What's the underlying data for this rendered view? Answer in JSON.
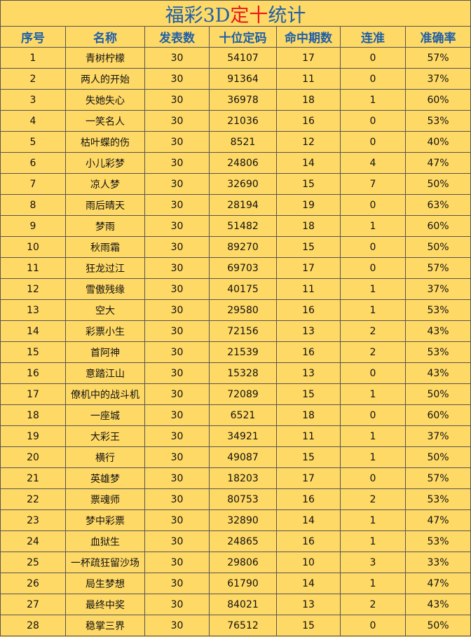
{
  "title": {
    "prefix": "福彩3D",
    "highlight": "定十",
    "suffix": "统计"
  },
  "table": {
    "headers": [
      "序号",
      "名称",
      "发表数",
      "十位定码",
      "命中期数",
      "连准",
      "准确率"
    ],
    "rows": [
      [
        "1",
        "青树柠檬",
        "30",
        "54107",
        "17",
        "0",
        "57%"
      ],
      [
        "2",
        "两人的开始",
        "30",
        "91364",
        "11",
        "0",
        "37%"
      ],
      [
        "3",
        "失她失心",
        "30",
        "36978",
        "18",
        "1",
        "60%"
      ],
      [
        "4",
        "一笑名人",
        "30",
        "21036",
        "16",
        "0",
        "53%"
      ],
      [
        "5",
        "枯叶蝶的伤",
        "30",
        "8521",
        "12",
        "0",
        "40%"
      ],
      [
        "6",
        "小儿彩梦",
        "30",
        "24806",
        "14",
        "4",
        "47%"
      ],
      [
        "7",
        "凉人梦",
        "30",
        "32690",
        "15",
        "7",
        "50%"
      ],
      [
        "8",
        "雨后晴天",
        "30",
        "28194",
        "19",
        "0",
        "63%"
      ],
      [
        "9",
        "梦雨",
        "30",
        "51482",
        "18",
        "1",
        "60%"
      ],
      [
        "10",
        "秋雨霜",
        "30",
        "89270",
        "15",
        "0",
        "50%"
      ],
      [
        "11",
        "狂龙过江",
        "30",
        "69703",
        "17",
        "0",
        "57%"
      ],
      [
        "12",
        "雪傲残缘",
        "30",
        "40175",
        "11",
        "1",
        "37%"
      ],
      [
        "13",
        "空大",
        "30",
        "29580",
        "16",
        "1",
        "53%"
      ],
      [
        "14",
        "彩票小生",
        "30",
        "72156",
        "13",
        "2",
        "43%"
      ],
      [
        "15",
        "首阿神",
        "30",
        "21539",
        "16",
        "2",
        "53%"
      ],
      [
        "16",
        "意踏江山",
        "30",
        "15328",
        "13",
        "0",
        "43%"
      ],
      [
        "17",
        "僚机中的战斗机",
        "30",
        "72089",
        "15",
        "1",
        "50%"
      ],
      [
        "18",
        "一座城",
        "30",
        "6521",
        "18",
        "0",
        "60%"
      ],
      [
        "19",
        "大彩王",
        "30",
        "34921",
        "11",
        "1",
        "37%"
      ],
      [
        "20",
        "横行",
        "30",
        "49087",
        "15",
        "1",
        "50%"
      ],
      [
        "21",
        "英雄梦",
        "30",
        "18203",
        "17",
        "0",
        "57%"
      ],
      [
        "22",
        "票魂师",
        "30",
        "80753",
        "16",
        "2",
        "53%"
      ],
      [
        "23",
        "梦中彩票",
        "30",
        "32890",
        "14",
        "1",
        "47%"
      ],
      [
        "24",
        "血狱生",
        "30",
        "24865",
        "16",
        "1",
        "53%"
      ],
      [
        "25",
        "一杯疏狂留沙场",
        "30",
        "29806",
        "10",
        "3",
        "33%"
      ],
      [
        "26",
        "局生梦想",
        "30",
        "61790",
        "14",
        "1",
        "47%"
      ],
      [
        "27",
        "最终中奖",
        "30",
        "84021",
        "13",
        "2",
        "43%"
      ],
      [
        "28",
        "稳掌三界",
        "30",
        "76512",
        "15",
        "0",
        "50%"
      ]
    ]
  }
}
